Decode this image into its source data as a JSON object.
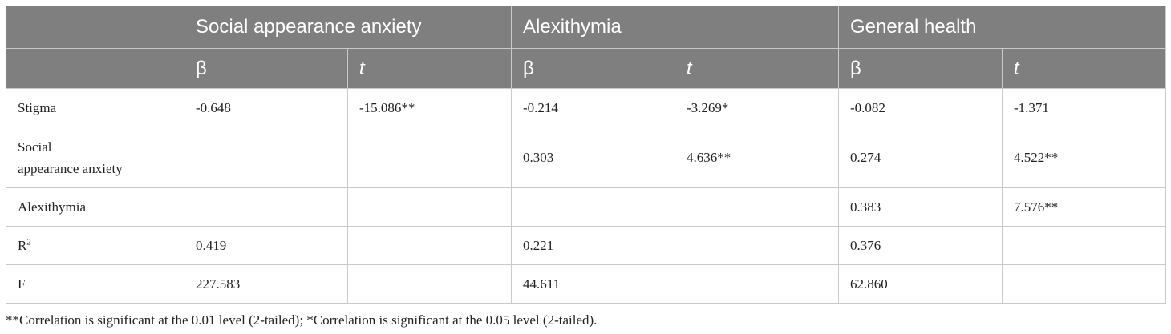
{
  "table": {
    "group_headers": [
      "",
      "Social appearance anxiety",
      "Alexithymia",
      "General health"
    ],
    "sub_headers": [
      "",
      "β",
      "t",
      "β",
      "t",
      "β",
      "t"
    ],
    "rows": [
      {
        "label": "Stigma",
        "cells": [
          "-0.648",
          "-15.086**",
          "-0.214",
          "-3.269*",
          "-0.082",
          "-1.371"
        ]
      },
      {
        "label_line1": "Social",
        "label_line2": "appearance anxiety",
        "cells": [
          "",
          "",
          "0.303",
          "4.636**",
          "0.274",
          "4.522**"
        ]
      },
      {
        "label": "Alexithymia",
        "cells": [
          "",
          "",
          "",
          "",
          "0.383",
          "7.576**"
        ]
      },
      {
        "label_base": "R",
        "label_sup": "2",
        "cells": [
          "0.419",
          "",
          "0.221",
          "",
          "0.376",
          ""
        ]
      },
      {
        "label": "F",
        "cells": [
          "227.583",
          "",
          "44.611",
          "",
          "62.860",
          ""
        ]
      }
    ]
  },
  "footnote": "**Correlation is significant at the 0.01 level (2-tailed); *Correlation is significant at the 0.05 level (2-tailed).",
  "colors": {
    "header_bg": "#7f7f7f",
    "header_text": "#ffffff",
    "border": "#c9c9c9",
    "body_text": "#222222"
  }
}
